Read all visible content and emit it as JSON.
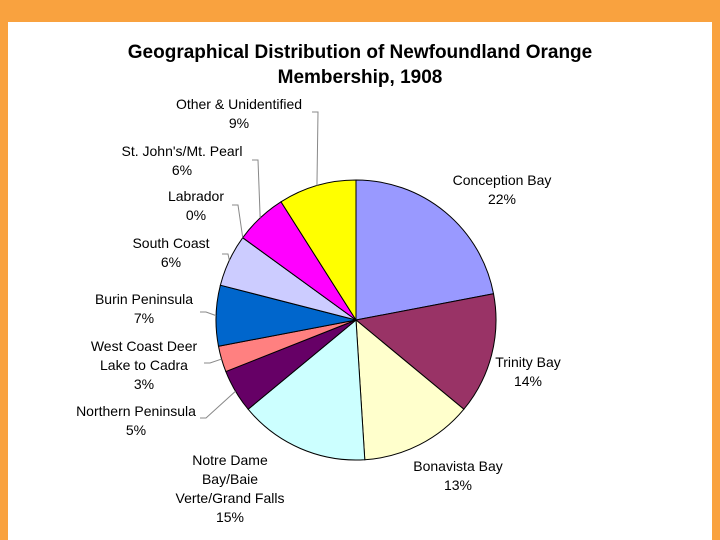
{
  "chart_data": {
    "type": "pie",
    "title": "Geographical Distribution of Newfoundland Orange Membership, 1908",
    "categories": [
      "Conception Bay",
      "Trinity Bay",
      "Bonavista Bay",
      "Notre Dame Bay/Baie Verte/Grand Falls",
      "Northern Peninsula",
      "West Coast Deer Lake to Cadra",
      "Burin Peninsula",
      "South Coast",
      "Labrador",
      "St. John's/Mt. Pearl",
      "Other & Unidentified"
    ],
    "values": [
      22,
      14,
      13,
      15,
      5,
      3,
      7,
      6,
      0,
      6,
      9
    ],
    "value_labels": [
      "22%",
      "14%",
      "13%",
      "15%",
      "5%",
      "3%",
      "7%",
      "6%",
      "0%",
      "6%",
      "9%"
    ],
    "colors": [
      "#9999ff",
      "#993366",
      "#ffffcc",
      "#ccffff",
      "#660066",
      "#ff8080",
      "#0066cc",
      "#ccccff",
      "#000080",
      "#ff00ff",
      "#ffff00"
    ]
  }
}
